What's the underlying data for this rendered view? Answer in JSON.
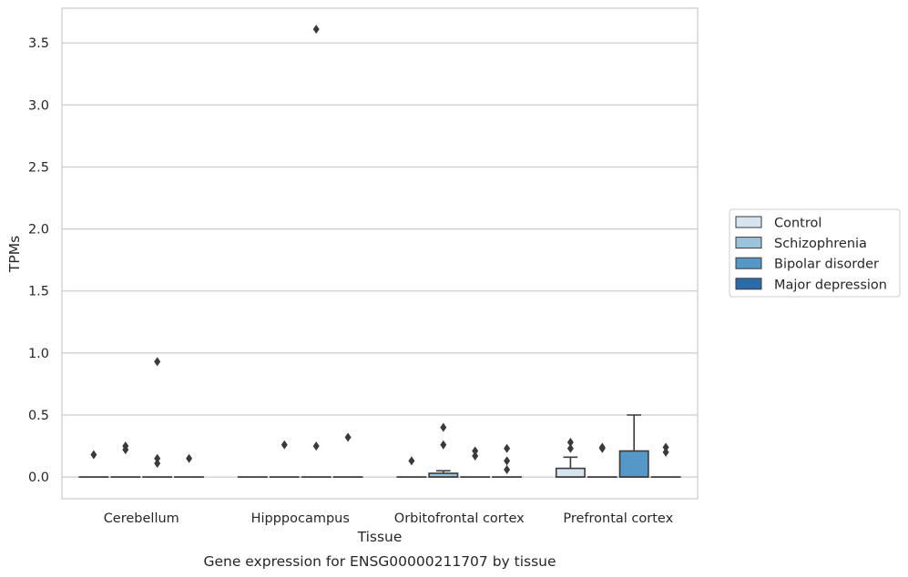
{
  "chart_data": {
    "type": "box",
    "title": "",
    "caption": "Gene expression for ENSG00000211707 by tissue",
    "xlabel": "Tissue",
    "ylabel": "TPMs",
    "ylim": [
      -0.175,
      3.78
    ],
    "yticks": [
      0.0,
      0.5,
      1.0,
      1.5,
      2.0,
      2.5,
      3.0,
      3.5
    ],
    "ytick_labels": [
      "0.0",
      "0.5",
      "1.0",
      "1.5",
      "2.0",
      "2.5",
      "3.0",
      "3.5"
    ],
    "grid": "horizontal",
    "legend_position": "right",
    "categories": [
      "Cerebellum",
      "Hipppocampus",
      "Orbitofrontal cortex",
      "Prefrontal cortex"
    ],
    "series": [
      {
        "name": "Control",
        "color": "#d6e4f0",
        "boxes": [
          {
            "q1": 0,
            "median": 0,
            "q3": 0,
            "whisker_low": 0,
            "whisker_high": 0,
            "outliers": [
              0.18
            ]
          },
          {
            "q1": 0,
            "median": 0,
            "q3": 0,
            "whisker_low": 0,
            "whisker_high": 0,
            "outliers": []
          },
          {
            "q1": 0,
            "median": 0,
            "q3": 0,
            "whisker_low": 0,
            "whisker_high": 0,
            "outliers": [
              0.13
            ]
          },
          {
            "q1": 0,
            "median": 0,
            "q3": 0.07,
            "whisker_low": 0,
            "whisker_high": 0.16,
            "outliers": [
              0.28,
              0.23
            ]
          }
        ]
      },
      {
        "name": "Schizophrenia",
        "color": "#9ac3dc",
        "boxes": [
          {
            "q1": 0,
            "median": 0,
            "q3": 0,
            "whisker_low": 0,
            "whisker_high": 0,
            "outliers": [
              0.25,
              0.22
            ]
          },
          {
            "q1": 0,
            "median": 0,
            "q3": 0,
            "whisker_low": 0,
            "whisker_high": 0,
            "outliers": [
              0.26
            ]
          },
          {
            "q1": 0,
            "median": 0,
            "q3": 0.03,
            "whisker_low": 0,
            "whisker_high": 0.05,
            "outliers": [
              0.4,
              0.26
            ]
          },
          {
            "q1": 0,
            "median": 0,
            "q3": 0,
            "whisker_low": 0,
            "whisker_high": 0,
            "outliers": [
              0.24,
              0.23
            ]
          }
        ]
      },
      {
        "name": "Bipolar disorder",
        "color": "#5597c6",
        "boxes": [
          {
            "q1": 0,
            "median": 0,
            "q3": 0,
            "whisker_low": 0,
            "whisker_high": 0,
            "outliers": [
              0.93,
              0.15,
              0.11
            ]
          },
          {
            "q1": 0,
            "median": 0,
            "q3": 0,
            "whisker_low": 0,
            "whisker_high": 0,
            "outliers": [
              3.61,
              0.25
            ]
          },
          {
            "q1": 0,
            "median": 0,
            "q3": 0,
            "whisker_low": 0,
            "whisker_high": 0,
            "outliers": [
              0.21,
              0.17
            ]
          },
          {
            "q1": 0,
            "median": 0,
            "q3": 0.21,
            "whisker_low": 0,
            "whisker_high": 0.5,
            "outliers": []
          }
        ]
      },
      {
        "name": "Major depression",
        "color": "#2d6ba8",
        "boxes": [
          {
            "q1": 0,
            "median": 0,
            "q3": 0,
            "whisker_low": 0,
            "whisker_high": 0,
            "outliers": [
              0.15
            ]
          },
          {
            "q1": 0,
            "median": 0,
            "q3": 0,
            "whisker_low": 0,
            "whisker_high": 0,
            "outliers": [
              0.32
            ]
          },
          {
            "q1": 0,
            "median": 0,
            "q3": 0,
            "whisker_low": 0,
            "whisker_high": 0,
            "outliers": [
              0.23,
              0.13,
              0.06
            ]
          },
          {
            "q1": 0,
            "median": 0,
            "q3": 0,
            "whisker_low": 0,
            "whisker_high": 0,
            "outliers": [
              0.24,
              0.2
            ]
          }
        ]
      }
    ]
  }
}
